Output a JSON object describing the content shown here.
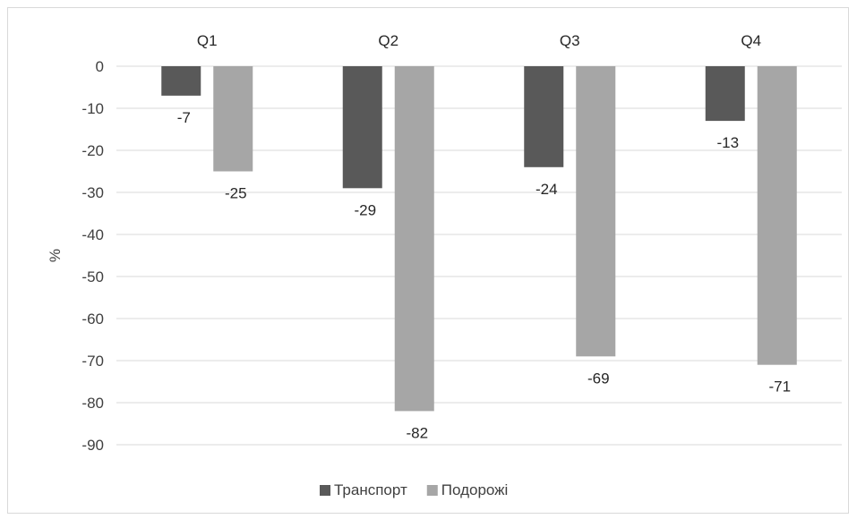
{
  "chart_data": {
    "type": "bar",
    "categories": [
      "Q1",
      "Q2",
      "Q3",
      "Q4"
    ],
    "series": [
      {
        "name": "Транспорт",
        "values": [
          -7,
          -29,
          -24,
          -13
        ],
        "color": "#595959"
      },
      {
        "name": "Подорожі",
        "values": [
          -25,
          -82,
          -69,
          -71
        ],
        "color": "#a6a6a6"
      }
    ],
    "title": "",
    "xlabel": "",
    "ylabel": "%",
    "ylim": [
      -90,
      0
    ],
    "yticks": [
      0,
      -10,
      -20,
      -30,
      -40,
      -50,
      -60,
      -70,
      -80,
      -90
    ],
    "x_axis_position": "top",
    "grid": true,
    "legend_position": "bottom"
  }
}
